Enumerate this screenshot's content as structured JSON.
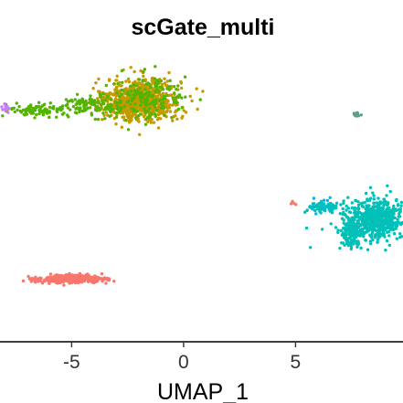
{
  "chart_data": {
    "type": "scatter",
    "title": "scGate_multi",
    "xlabel": "UMAP_1",
    "ylabel": "",
    "xlim": [
      -8.2,
      9.8
    ],
    "ylim": [
      -12.4,
      6.8
    ],
    "x_ticks": [
      -5,
      0,
      5
    ],
    "x_tick_labels": [
      "-5",
      "0",
      "5"
    ],
    "grid": false,
    "legend": "none",
    "series": [
      {
        "color": "#c49a00",
        "clusters": [
          {
            "cx": -1.8,
            "cy": 3.8,
            "sx": 1.1,
            "sy": 0.95,
            "n": 700
          },
          {
            "cx": -3.0,
            "cy": 3.5,
            "sx": 0.55,
            "sy": 0.55,
            "n": 90
          }
        ]
      },
      {
        "color": "#53b400",
        "clusters": [
          {
            "cx": -1.6,
            "cy": 3.9,
            "sx": 1.2,
            "sy": 1.0,
            "n": 180
          },
          {
            "cx": -4.2,
            "cy": 3.4,
            "sx": 0.9,
            "sy": 0.45,
            "n": 110
          },
          {
            "cx": -6.6,
            "cy": 3.1,
            "sx": 0.8,
            "sy": 0.3,
            "n": 90
          }
        ]
      },
      {
        "color": "#00b6eb",
        "clusters": [
          {
            "cx": 6.2,
            "cy": -3.3,
            "sx": 0.45,
            "sy": 0.3,
            "n": 30
          }
        ]
      },
      {
        "color": "#00c0b8",
        "clusters": [
          {
            "cx": 8.6,
            "cy": -4.2,
            "sx": 1.0,
            "sy": 0.9,
            "n": 600
          },
          {
            "cx": 7.5,
            "cy": -5.3,
            "sx": 0.35,
            "sy": 0.7,
            "n": 120
          },
          {
            "cx": 6.2,
            "cy": -3.4,
            "sx": 0.55,
            "sy": 0.25,
            "n": 50
          }
        ]
      },
      {
        "color": "#f8766d",
        "clusters": [
          {
            "cx": -5.0,
            "cy": -8.2,
            "sx": 0.95,
            "sy": 0.17,
            "n": 420
          },
          {
            "cx": 4.9,
            "cy": -3.1,
            "sx": 0.1,
            "sy": 0.1,
            "n": 4
          }
        ]
      },
      {
        "color": "#5f9e84",
        "clusters": [
          {
            "cx": 7.7,
            "cy": 2.8,
            "sx": 0.1,
            "sy": 0.07,
            "n": 18
          }
        ]
      },
      {
        "color": "#c77cff",
        "clusters": [
          {
            "cx": -8.0,
            "cy": 3.2,
            "sx": 0.12,
            "sy": 0.2,
            "n": 10
          }
        ]
      }
    ]
  }
}
